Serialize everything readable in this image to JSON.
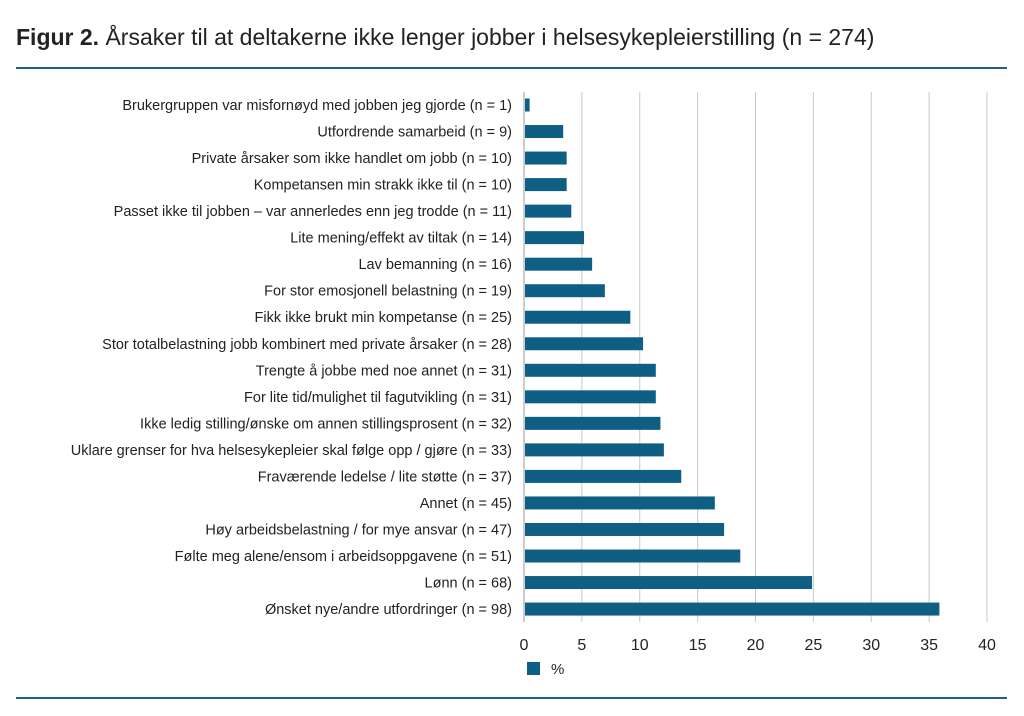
{
  "figure": {
    "label": "Figur 2.",
    "title": "Årsaker til at deltakerne ikke lenger jobber i helsesykepleierstilling (n = 274)"
  },
  "chart_data": {
    "type": "bar",
    "orientation": "horizontal",
    "categories": [
      "Brukergruppen var misfornøyd med jobben jeg gjorde (n = 1)",
      "Utfordrende samarbeid (n = 9)",
      "Private årsaker som ikke handlet om jobb (n = 10)",
      "Kompetansen min strakk ikke til (n = 10)",
      "Passet ikke til jobben – var annerledes enn jeg trodde (n = 11)",
      "Lite mening/effekt av tiltak (n = 14)",
      "Lav bemanning (n = 16)",
      "For stor emosjonell belastning (n = 19)",
      "Fikk ikke brukt min kompetanse (n = 25)",
      "Stor totalbelastning jobb kombinert med private årsaker (n = 28)",
      "Trengte å jobbe med noe annet (n = 31)",
      "For lite tid/mulighet til fagutvikling (n = 31)",
      "Ikke ledig stilling/ønske om annen stillingsprosent (n = 32)",
      "Uklare grenser for hva helsesykepleier skal følge opp / gjøre (n = 33)",
      "Fraværende ledelse / lite støtte (n = 37)",
      "Annet (n = 45)",
      "Høy arbeidsbelastning / for mye ansvar (n = 47)",
      "Følte meg alene/ensom i arbeidsoppgavene (n = 51)",
      "Lønn (n = 68)",
      "Ønsket nye/andre utfordringer (n = 98)"
    ],
    "series": [
      {
        "name": "%",
        "color": "#0f5f85",
        "values": [
          0.4,
          3.3,
          3.6,
          3.6,
          4.0,
          5.1,
          5.8,
          6.9,
          9.1,
          10.2,
          11.3,
          11.3,
          11.7,
          12.0,
          13.5,
          16.4,
          17.2,
          18.6,
          24.8,
          35.8
        ]
      }
    ],
    "xlim": [
      0,
      40
    ],
    "xticks": [
      "0",
      "5",
      "10",
      "15",
      "20",
      "25",
      "30",
      "35",
      "40"
    ],
    "grid": "vertical",
    "legend_position": "bottom-left",
    "xlabel": "",
    "ylabel": ""
  }
}
